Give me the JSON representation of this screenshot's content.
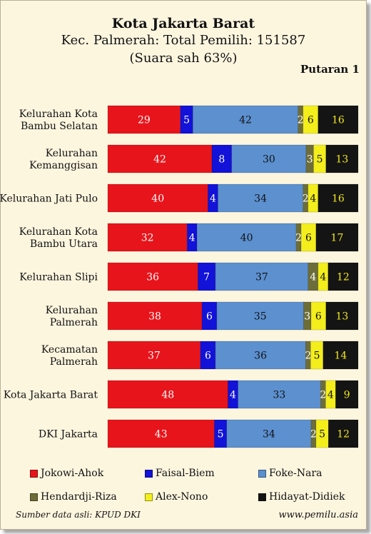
{
  "header": {
    "title": "Kota Jakarta Barat",
    "subtitle": "Kec. Palmerah: Total Pemilih: 151587",
    "note": "(Suara sah 63%)",
    "round": "Putaran 1"
  },
  "footer": {
    "source": "Sumber data asli: KPUD DKI",
    "site": "www.pemilu.asia"
  },
  "chart_data": {
    "type": "bar",
    "orientation": "horizontal",
    "stacked": true,
    "normalized": true,
    "categories": [
      [
        "Kelurahan Kota",
        "Bambu Selatan"
      ],
      [
        "Kelurahan",
        "Kemanggisan"
      ],
      [
        "Kelurahan Jati Pulo"
      ],
      [
        "Kelurahan Kota",
        "Bambu Utara"
      ],
      [
        "Kelurahan Slipi"
      ],
      [
        "Kelurahan",
        "Palmerah"
      ],
      [
        "Kecamatan",
        "Palmerah"
      ],
      [
        "Kota Jakarta Barat"
      ],
      [
        "DKI Jakarta"
      ]
    ],
    "series": [
      {
        "name": "Jokowi-Ahok",
        "color": "#e8141b",
        "label_color": "#ffffff",
        "values": [
          29,
          42,
          40,
          32,
          36,
          38,
          37,
          48,
          43
        ]
      },
      {
        "name": "Faisal-Biem",
        "color": "#1212d8",
        "label_color": "#ffffff",
        "values": [
          5,
          8,
          4,
          4,
          7,
          6,
          6,
          4,
          5
        ]
      },
      {
        "name": "Foke-Nara",
        "color": "#5c90cf",
        "label_color": "#111111",
        "values": [
          42,
          30,
          34,
          40,
          37,
          35,
          36,
          33,
          34
        ]
      },
      {
        "name": "Hendardji-Riza",
        "color": "#6d6d3a",
        "label_color": "#ffffff",
        "values": [
          2,
          3,
          2,
          2,
          4,
          3,
          2,
          2,
          2
        ]
      },
      {
        "name": "Alex-Nono",
        "color": "#f3ee1c",
        "label_color": "#111111",
        "values": [
          6,
          5,
          4,
          6,
          4,
          6,
          5,
          4,
          5
        ]
      },
      {
        "name": "Hidayat-Didiek",
        "color": "#141414",
        "label_color": "#f3e81c",
        "values": [
          16,
          13,
          16,
          17,
          12,
          13,
          14,
          9,
          12
        ]
      }
    ],
    "legend_position": "bottom",
    "grid": false
  }
}
